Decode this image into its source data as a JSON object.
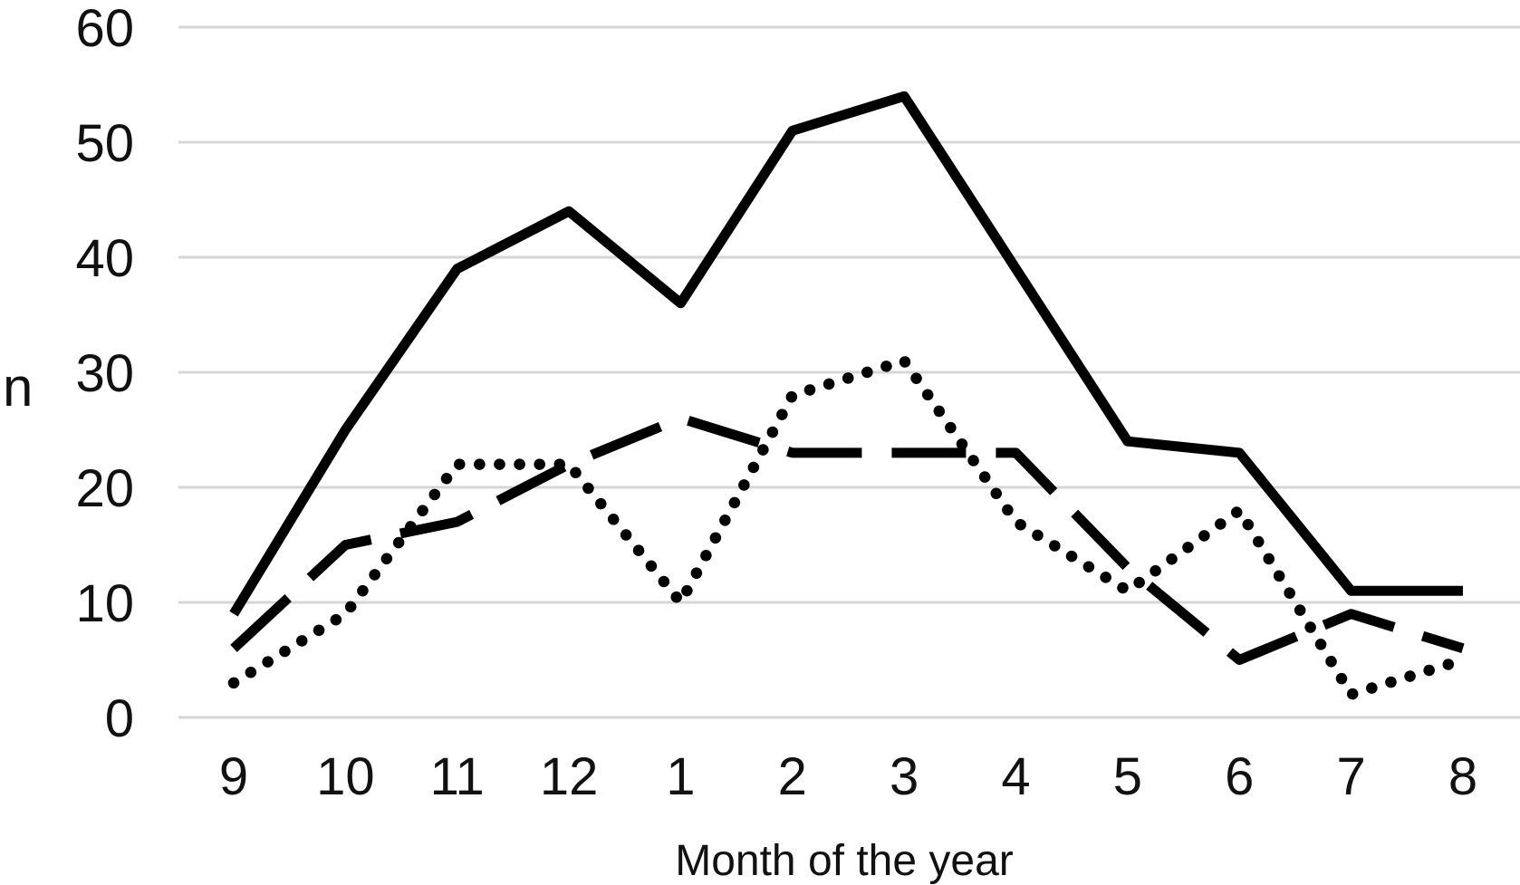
{
  "chart_data": {
    "type": "line",
    "title": "",
    "xlabel": "Month of the year",
    "ylabel": "n",
    "categories": [
      "9",
      "10",
      "11",
      "12",
      "1",
      "2",
      "3",
      "4",
      "5",
      "6",
      "7",
      "8"
    ],
    "yticks": [
      0,
      10,
      20,
      30,
      40,
      50,
      60
    ],
    "ylim": [
      0,
      60
    ],
    "grid": "horizontal-only",
    "legend_position": "none",
    "line_color": "#000000",
    "gridline_color": "#d6d6d6",
    "background_color": "#ffffff",
    "series": [
      {
        "name": "solid-line",
        "style": "solid",
        "values": [
          9,
          25,
          39,
          44,
          36,
          51,
          54,
          39,
          24,
          23,
          11,
          11
        ]
      },
      {
        "name": "dashed-line",
        "style": "dashed",
        "values": [
          6,
          15,
          17,
          22,
          26,
          23,
          23,
          23,
          13,
          5,
          9,
          6
        ]
      },
      {
        "name": "dotted-line",
        "style": "dotted",
        "values": [
          3,
          9,
          22,
          22,
          10,
          28,
          31,
          17,
          11,
          18,
          2,
          5
        ]
      }
    ]
  }
}
